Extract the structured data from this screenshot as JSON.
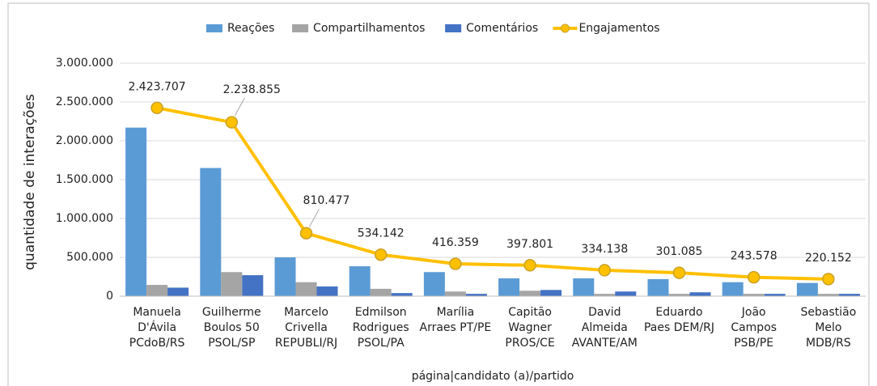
{
  "chart_data": {
    "type": "bar",
    "x_label": "página|candidato (a)/partido",
    "y_label": "quantidade de interações",
    "categories": [
      "Manuela\nD'Ávila\nPCdoB/RS",
      "Guilherme\nBoulos 50\nPSOL/SP",
      "Marcelo\nCrivella\nREPUBLI/RJ",
      "Edmilson\nRodrigues\nPSOL/PA",
      "Marília\nArraes PT/PE",
      "Capitão\nWagner\nPROS/CE",
      "David\nAlmeida\nAVANTE/AM",
      "Eduardo\nPaes DEM/RJ",
      "João\nCampos\nPSB/PE",
      "Sebastião\nMelo\nMDB/RS"
    ],
    "series": [
      {
        "name": "Reações",
        "color": "#5b9bd5",
        "values": [
          2170000,
          1650000,
          500000,
          385000,
          310000,
          230000,
          230000,
          220000,
          180000,
          170000
        ]
      },
      {
        "name": "Compartilhamentos",
        "color": "#a5a5a5",
        "values": [
          145000,
          310000,
          180000,
          95000,
          60000,
          70000,
          30000,
          30000,
          30000,
          30000
        ]
      },
      {
        "name": "Comentários",
        "color": "#4472c4",
        "values": [
          110000,
          270000,
          125000,
          40000,
          30000,
          80000,
          60000,
          50000,
          30000,
          30000
        ]
      },
      {
        "name": "Engajamentos",
        "color": "#ffc000",
        "type": "line",
        "values": [
          2423707,
          2238855,
          810477,
          534142,
          416359,
          397801,
          334138,
          301085,
          243578,
          220152
        ],
        "value_labels": [
          "2.423.707",
          "2.238.855",
          "810.477",
          "534.142",
          "416.359",
          "397.801",
          "334.138",
          "301.085",
          "243.578",
          "220.152"
        ]
      }
    ],
    "ylim": [
      0,
      3000000
    ],
    "yticks": [
      0,
      {
        "value": 500000,
        "label": "500.000"
      },
      {
        "value": 1000000,
        "label": "1.000.000"
      },
      {
        "value": 1500000,
        "label": "1.500.000"
      },
      {
        "value": 2000000,
        "label": "2.000.000"
      },
      {
        "value": 2500000,
        "label": "2.500.000"
      },
      {
        "value": 3000000,
        "label": "3.000.000"
      }
    ],
    "grid": true
  }
}
